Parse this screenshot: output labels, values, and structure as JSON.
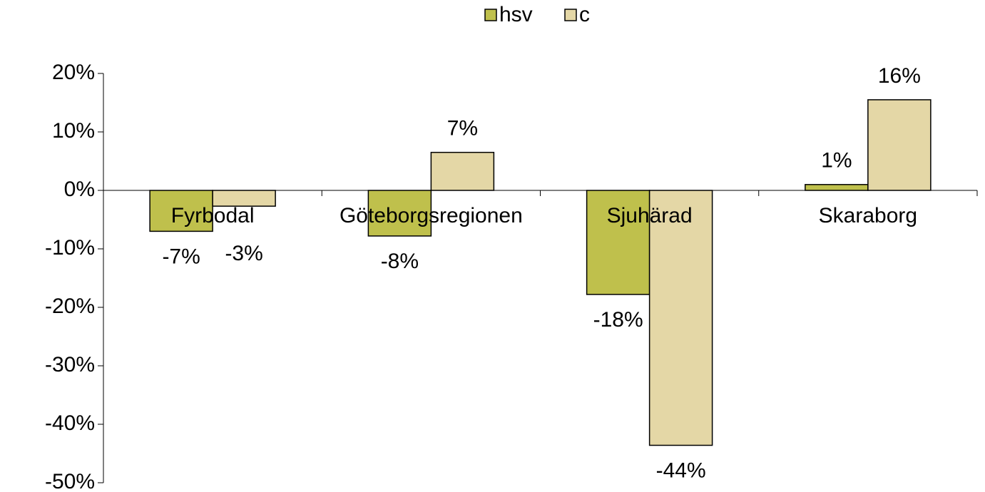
{
  "chart_data": {
    "type": "bar",
    "categories": [
      "Fyrbodal",
      "Göteborgsregionen",
      "Sjuhärad",
      "Skaraborg"
    ],
    "series": [
      {
        "name": "hsv",
        "color": "#bfc04c",
        "values": [
          -7,
          -7.8,
          -17.8,
          1
        ],
        "value_labels": [
          "-7%",
          "-8%",
          "-18%",
          "1%"
        ]
      },
      {
        "name": "c",
        "color": "#e4d7a6",
        "values": [
          -2.7,
          6.5,
          -43.6,
          15.5
        ],
        "value_labels": [
          "-3%",
          "7%",
          "-44%",
          "16%"
        ]
      }
    ],
    "ylim": [
      -50,
      20
    ],
    "yticks": [
      {
        "value": -50,
        "label": "-50%"
      },
      {
        "value": -40,
        "label": "-40%"
      },
      {
        "value": -30,
        "label": "-30%"
      },
      {
        "value": -20,
        "label": "-20%"
      },
      {
        "value": -10,
        "label": "-10%"
      },
      {
        "value": 0,
        "label": "0%"
      },
      {
        "value": 10,
        "label": "10%"
      },
      {
        "value": 20,
        "label": "20%"
      }
    ],
    "legend": "top"
  }
}
